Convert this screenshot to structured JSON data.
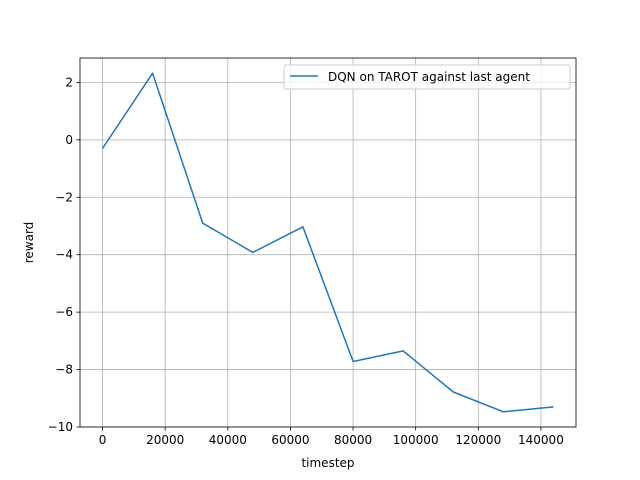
{
  "chart_data": {
    "type": "line",
    "title": "",
    "xlabel": "timestep",
    "ylabel": "reward",
    "xlim": [
      -7200,
      151200
    ],
    "ylim": [
      -10.0,
      2.85
    ],
    "xticks": [
      0,
      20000,
      40000,
      60000,
      80000,
      100000,
      120000,
      140000
    ],
    "yticks": [
      -10,
      -8,
      -6,
      -4,
      -2,
      0,
      2
    ],
    "xtick_labels": [
      "0",
      "20000",
      "40000",
      "60000",
      "80000",
      "100000",
      "120000",
      "140000"
    ],
    "ytick_labels": [
      "−10",
      "−8",
      "−6",
      "−4",
      "−2",
      "0",
      "2"
    ],
    "grid": true,
    "legend_position": "top-right",
    "series": [
      {
        "name": "DQN on TAROT against last agent",
        "color": "#1f77b4",
        "x": [
          0,
          16000,
          32000,
          48000,
          64000,
          80000,
          96000,
          112000,
          128000,
          144000
        ],
        "y": [
          -0.3,
          2.32,
          -2.9,
          -3.92,
          -3.03,
          -7.72,
          -7.35,
          -8.78,
          -9.47,
          -9.3
        ]
      }
    ]
  }
}
